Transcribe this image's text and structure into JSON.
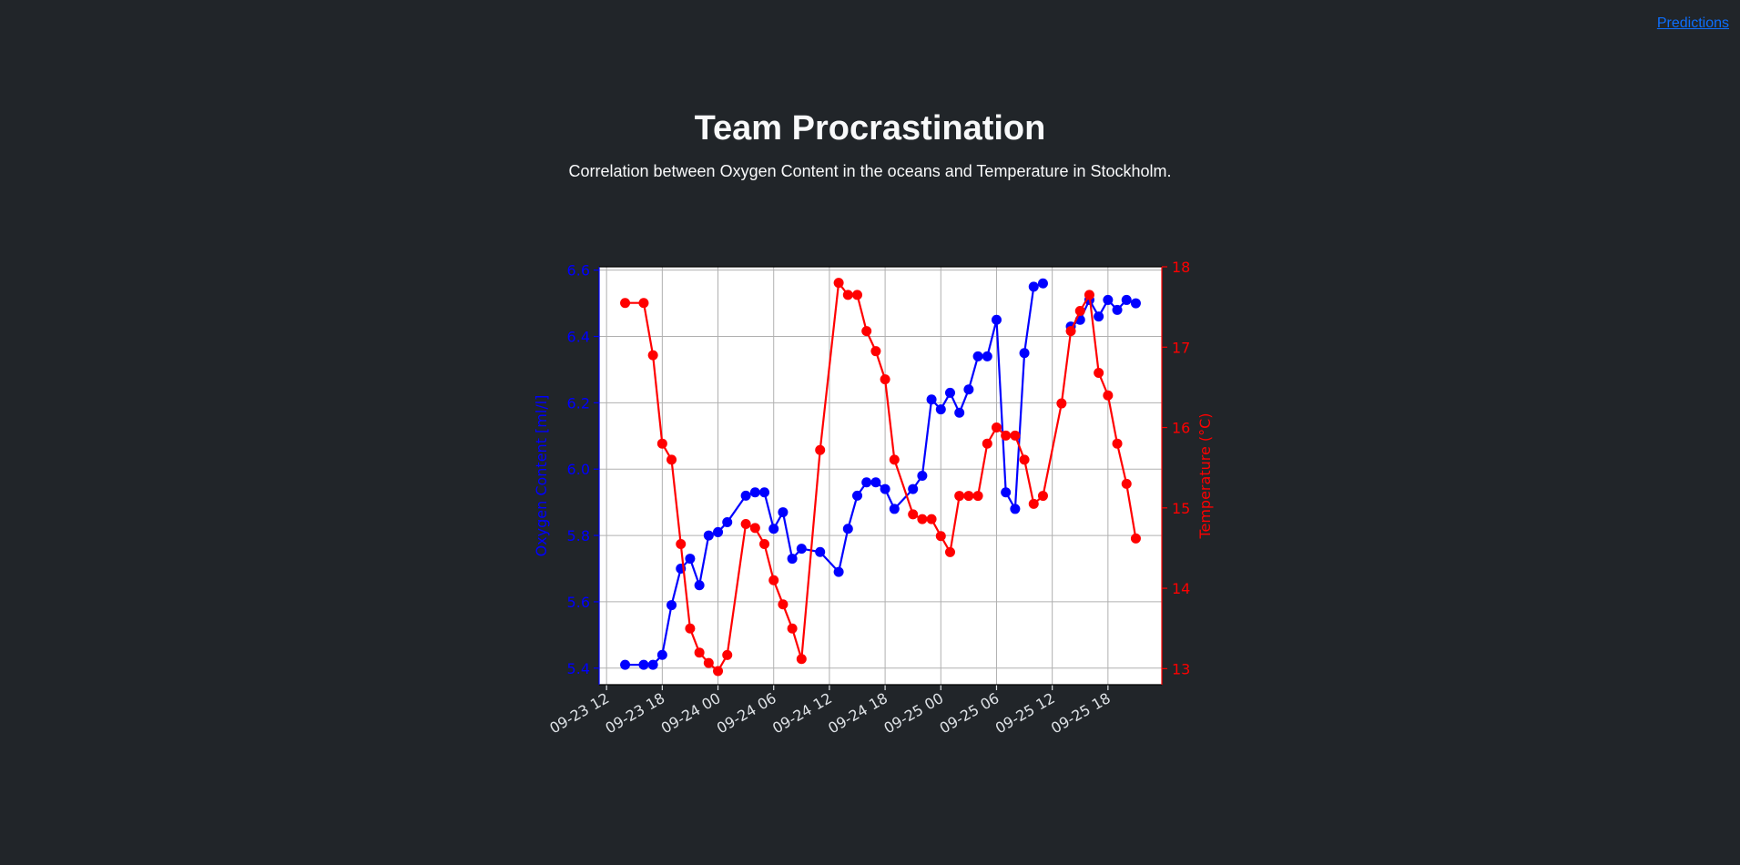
{
  "nav": {
    "predictions_label": "Predictions"
  },
  "header": {
    "title": "Team Procrastination",
    "subtitle": "Correlation between Oxygen Content in the oceans and Temperature in Stockholm."
  },
  "colors": {
    "background": "#212529",
    "oxygen": "#0000ff",
    "temperature": "#ff0000",
    "tick_text": "#dee2e6",
    "link": "#0d6efd"
  },
  "chart_data": {
    "type": "line",
    "grid": true,
    "x_unit": "hours since 09-23 12:00",
    "x_range": [
      -0.8,
      59.8
    ],
    "x_ticks": [
      {
        "label": "09-23 12",
        "x": 0
      },
      {
        "label": "09-23 18",
        "x": 6
      },
      {
        "label": "09-24 00",
        "x": 12
      },
      {
        "label": "09-24 06",
        "x": 18
      },
      {
        "label": "09-24 12",
        "x": 24
      },
      {
        "label": "09-24 18",
        "x": 30
      },
      {
        "label": "09-25 00",
        "x": 36
      },
      {
        "label": "09-25 06",
        "x": 42
      },
      {
        "label": "09-25 12",
        "x": 48
      },
      {
        "label": "09-25 18",
        "x": 54
      }
    ],
    "y_left": {
      "label": "Oxygen Content [ml/l]",
      "range": [
        5.35,
        6.61
      ],
      "ticks": [
        "5.4",
        "5.6",
        "5.8",
        "6.0",
        "6.2",
        "6.4",
        "6.6"
      ]
    },
    "y_right": {
      "label": "Temperature (°C)",
      "range": [
        12.8,
        18.0
      ],
      "ticks": [
        "13",
        "14",
        "15",
        "16",
        "17",
        "18"
      ]
    },
    "series": [
      {
        "name": "Oxygen Content [ml/l]",
        "axis": "left",
        "segments": [
          [
            [
              2,
              5.41
            ],
            [
              4,
              5.41
            ],
            [
              5,
              5.41
            ],
            [
              6,
              5.44
            ],
            [
              7,
              5.59
            ],
            [
              8,
              5.7
            ],
            [
              9,
              5.73
            ],
            [
              10,
              5.65
            ],
            [
              11,
              5.8
            ],
            [
              12,
              5.81
            ],
            [
              13,
              5.84
            ],
            [
              15,
              5.92
            ],
            [
              16,
              5.93
            ],
            [
              17,
              5.93
            ],
            [
              18,
              5.82
            ],
            [
              19,
              5.87
            ],
            [
              20,
              5.73
            ],
            [
              21,
              5.76
            ],
            [
              23,
              5.75
            ],
            [
              25,
              5.69
            ],
            [
              26,
              5.82
            ],
            [
              27,
              5.92
            ],
            [
              28,
              5.96
            ],
            [
              29,
              5.96
            ],
            [
              30,
              5.94
            ],
            [
              31,
              5.88
            ],
            [
              33,
              5.94
            ],
            [
              34,
              5.98
            ],
            [
              35,
              6.21
            ],
            [
              36,
              6.18
            ],
            [
              37,
              6.23
            ],
            [
              38,
              6.17
            ],
            [
              39,
              6.24
            ],
            [
              40,
              6.34
            ],
            [
              41,
              6.34
            ],
            [
              42,
              6.45
            ],
            [
              43,
              5.93
            ],
            [
              44,
              5.88
            ],
            [
              45,
              6.35
            ],
            [
              46,
              6.55
            ],
            [
              47,
              6.56
            ]
          ],
          [
            [
              50,
              6.43
            ],
            [
              51,
              6.45
            ],
            [
              52,
              6.51
            ],
            [
              53,
              6.46
            ],
            [
              54,
              6.51
            ],
            [
              55,
              6.48
            ],
            [
              56,
              6.51
            ],
            [
              57,
              6.5
            ]
          ]
        ]
      },
      {
        "name": "Temperature (°C)",
        "axis": "right",
        "segments": [
          [
            [
              2,
              17.55
            ],
            [
              4,
              17.55
            ],
            [
              5,
              16.9
            ],
            [
              6,
              15.8
            ],
            [
              7,
              15.6
            ],
            [
              8,
              14.55
            ],
            [
              9,
              13.5
            ],
            [
              10,
              13.2
            ],
            [
              11,
              13.07
            ],
            [
              12,
              12.97
            ],
            [
              13,
              13.17
            ],
            [
              15,
              14.8
            ],
            [
              16,
              14.75
            ],
            [
              17,
              14.55
            ],
            [
              18,
              14.1
            ],
            [
              19,
              13.8
            ],
            [
              20,
              13.5
            ],
            [
              21,
              13.12
            ],
            [
              23,
              15.72
            ],
            [
              25,
              17.8
            ],
            [
              26,
              17.65
            ],
            [
              27,
              17.65
            ],
            [
              28,
              17.2
            ],
            [
              29,
              16.95
            ],
            [
              30,
              16.6
            ],
            [
              31,
              15.6
            ],
            [
              33,
              14.92
            ],
            [
              34,
              14.86
            ],
            [
              35,
              14.86
            ],
            [
              36,
              14.65
            ],
            [
              37,
              14.45
            ],
            [
              38,
              15.15
            ],
            [
              39,
              15.15
            ],
            [
              40,
              15.15
            ],
            [
              41,
              15.8
            ],
            [
              42,
              16.0
            ],
            [
              43,
              15.9
            ],
            [
              44,
              15.9
            ],
            [
              45,
              15.6
            ],
            [
              46,
              15.05
            ],
            [
              47,
              15.15
            ],
            [
              49,
              16.3
            ],
            [
              50,
              17.2
            ],
            [
              51,
              17.45
            ],
            [
              52,
              17.65
            ],
            [
              53,
              16.68
            ],
            [
              54,
              16.4
            ],
            [
              55,
              15.8
            ],
            [
              56,
              15.3
            ],
            [
              57,
              14.62
            ]
          ]
        ]
      }
    ]
  }
}
